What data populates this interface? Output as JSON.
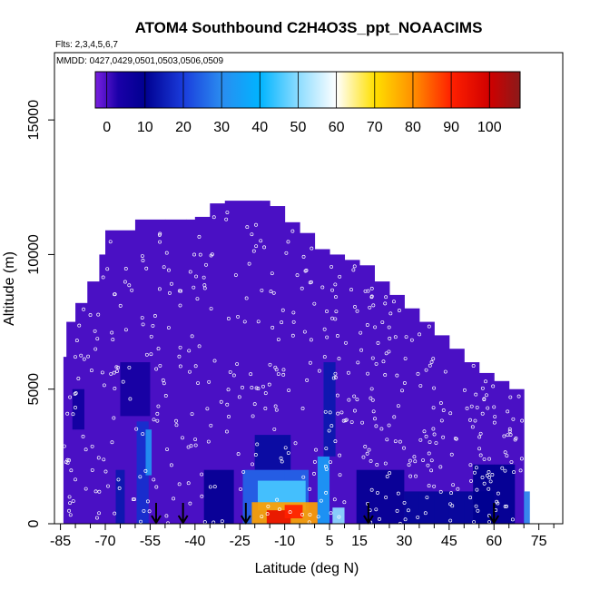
{
  "chart_data": {
    "type": "heatmap",
    "title": "ATOM4 Southbound C2H4O3S_ppt_NOAACIMS",
    "subtitle_flights": "Flts: 2,3,4,5,6,7",
    "subtitle_dates": "MMDD: 0427,0429,0501,0503,0506,0509",
    "xlabel": "Latitude (deg N)",
    "ylabel": "Altitude (m)",
    "xlim": [
      -87,
      83
    ],
    "ylim": [
      0,
      17500
    ],
    "x_ticks": [
      -85,
      -70,
      -55,
      -40,
      -25,
      -10,
      5,
      15,
      30,
      45,
      60,
      75
    ],
    "x_minor_ticks": [
      -80,
      -75,
      -65,
      -60,
      -50,
      -45,
      -35,
      -30,
      -20,
      -15,
      -5,
      0,
      10,
      20,
      25,
      35,
      40,
      50,
      55,
      65,
      70,
      80
    ],
    "y_ticks": [
      0,
      5000,
      10000,
      15000
    ],
    "colorbar": {
      "ticks": [
        0,
        10,
        20,
        30,
        40,
        50,
        60,
        70,
        80,
        90,
        100
      ],
      "range": [
        -3,
        108
      ],
      "stops": [
        {
          "v": -3,
          "c": "#7a1fe0"
        },
        {
          "v": 3,
          "c": "#1a00a8"
        },
        {
          "v": 10,
          "c": "#000090"
        },
        {
          "v": 20,
          "c": "#1a3cdc"
        },
        {
          "v": 30,
          "c": "#2a8cf0"
        },
        {
          "v": 40,
          "c": "#00b4ff"
        },
        {
          "v": 50,
          "c": "#8cdcff"
        },
        {
          "v": 60,
          "c": "#ffffff"
        },
        {
          "v": 70,
          "c": "#ffe000"
        },
        {
          "v": 80,
          "c": "#ff9000"
        },
        {
          "v": 90,
          "c": "#ff2000"
        },
        {
          "v": 100,
          "c": "#d00000"
        },
        {
          "v": 108,
          "c": "#8b1a1a"
        }
      ]
    },
    "background_value": 0,
    "coverage_top": [
      [
        -84,
        6200
      ],
      [
        -83,
        7500
      ],
      [
        -80,
        8200
      ],
      [
        -76,
        9000
      ],
      [
        -72,
        10000
      ],
      [
        -70,
        10900
      ],
      [
        -60,
        11300
      ],
      [
        -50,
        11300
      ],
      [
        -43,
        11300
      ],
      [
        -40,
        11400
      ],
      [
        -35,
        11900
      ],
      [
        -30,
        12000
      ],
      [
        -18,
        12000
      ],
      [
        -15,
        11800
      ],
      [
        -10,
        11200
      ],
      [
        -5,
        10800
      ],
      [
        0,
        10200
      ],
      [
        5,
        10000
      ],
      [
        10,
        9800
      ],
      [
        15,
        9600
      ],
      [
        20,
        9000
      ],
      [
        25,
        8500
      ],
      [
        30,
        8000
      ],
      [
        35,
        7500
      ],
      [
        40,
        7000
      ],
      [
        45,
        6500
      ],
      [
        50,
        6000
      ],
      [
        55,
        5600
      ],
      [
        60,
        5300
      ],
      [
        65,
        5000
      ],
      [
        70,
        5000
      ]
    ],
    "features": [
      {
        "lat": -57.5,
        "w": 4,
        "alt0": 0,
        "alt1": 3800,
        "v": 18
      },
      {
        "lat": -55.5,
        "w": 2,
        "alt0": 1800,
        "alt1": 3500,
        "v": 32
      },
      {
        "lat": -65,
        "w": 3,
        "alt0": 0,
        "alt1": 2000,
        "v": 14
      },
      {
        "lat": -32,
        "w": 10,
        "alt0": 0,
        "alt1": 2000,
        "v": 9
      },
      {
        "lat": -14,
        "w": 12,
        "alt0": 2000,
        "alt1": 3300,
        "v": 12
      },
      {
        "lat": -13,
        "w": 22,
        "alt0": 0,
        "alt1": 2000,
        "v": 25
      },
      {
        "lat": -11,
        "w": 16,
        "alt0": 500,
        "alt1": 1600,
        "v": 45
      },
      {
        "lat": -10,
        "w": 22,
        "alt0": 0,
        "alt1": 800,
        "v": 78
      },
      {
        "lat": -12,
        "w": 8,
        "alt0": 0,
        "alt1": 500,
        "v": 95
      },
      {
        "lat": -7,
        "w": 6,
        "alt0": 200,
        "alt1": 700,
        "v": 90
      },
      {
        "lat": 3,
        "w": 4,
        "alt0": 0,
        "alt1": 2500,
        "v": 34
      },
      {
        "lat": 5,
        "w": 4,
        "alt0": 2500,
        "alt1": 6000,
        "v": 14
      },
      {
        "lat": 8,
        "w": 4,
        "alt0": 0,
        "alt1": 600,
        "v": 50
      },
      {
        "lat": 22,
        "w": 16,
        "alt0": 0,
        "alt1": 2000,
        "v": 9
      },
      {
        "lat": 45,
        "w": 30,
        "alt0": 0,
        "alt1": 1200,
        "v": 11
      },
      {
        "lat": 60,
        "w": 14,
        "alt0": 0,
        "alt1": 2200,
        "v": 10
      },
      {
        "lat": 71,
        "w": 2,
        "alt0": 0,
        "alt1": 1200,
        "v": 28
      },
      {
        "lat": -79,
        "w": 4,
        "alt0": 3500,
        "alt1": 5000,
        "v": 6
      },
      {
        "lat": -60,
        "w": 10,
        "alt0": 4000,
        "alt1": 6000,
        "v": 5
      }
    ],
    "profile_arrows_lat": [
      -53,
      -44,
      -23,
      18,
      60
    ]
  }
}
